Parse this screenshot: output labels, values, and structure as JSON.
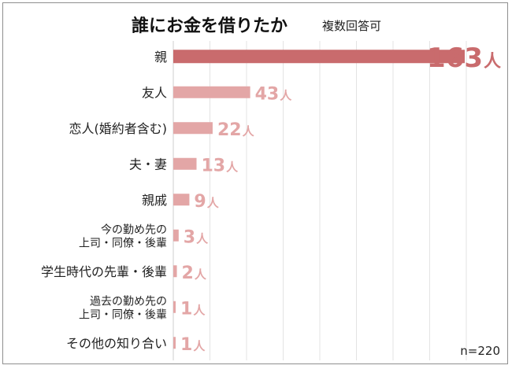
{
  "chart_data": {
    "type": "bar",
    "orientation": "horizontal",
    "title": "誰にお金を借りたか",
    "subtitle": "複数回答可",
    "note": "n=220",
    "unit": "人",
    "categories": [
      "親",
      "友人",
      "恋人(婚約者含む)",
      "夫・妻",
      "親戚",
      "今の勤め先の\n上司・同僚・後輩",
      "学生時代の先輩・後輩",
      "過去の勤め先の\n上司・同僚・後輩",
      "その他の知り合い"
    ],
    "values": [
      163,
      43,
      22,
      13,
      9,
      3,
      2,
      1,
      1
    ],
    "grid": true,
    "colors": {
      "top": "#c96b6d",
      "other": "#e3a6a6",
      "grid": "#e3e3e3"
    }
  }
}
